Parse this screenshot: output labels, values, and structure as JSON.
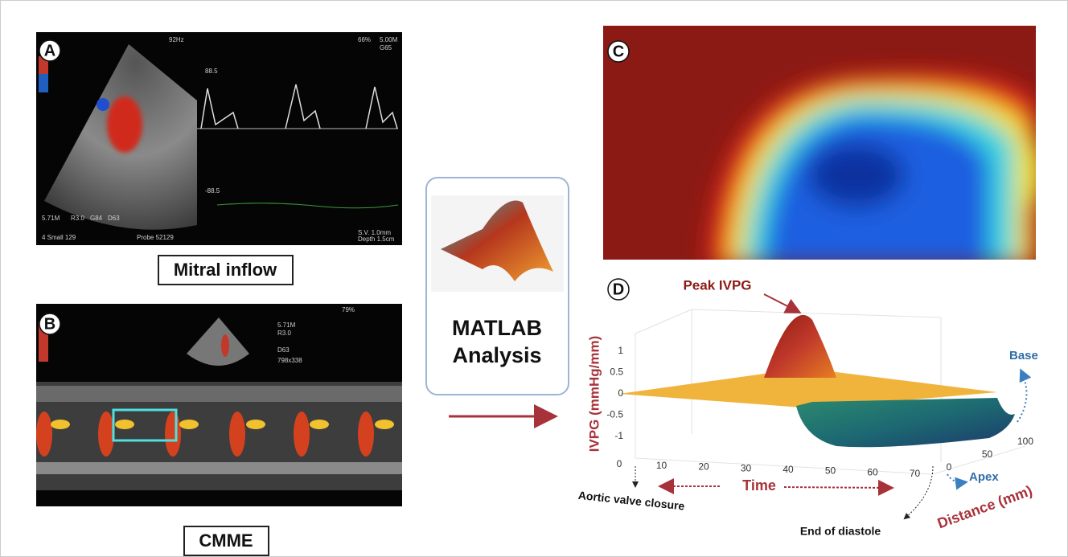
{
  "panels": {
    "a": "A",
    "b": "B",
    "c": "C",
    "d": "D"
  },
  "panel_a": {
    "label": "Mitral inflow",
    "overlay": [
      "92Hz",
      "66%",
      "5.00M",
      "G65",
      "88.5",
      "-88.5",
      "5.71M",
      "R3.0",
      "G84",
      "D63",
      "4 Small 129",
      "Probe 52129",
      "S.V. 1.0mm",
      "Depth 1.5cm"
    ]
  },
  "panel_b": {
    "label": "CMME",
    "overlay": [
      "79%",
      "5.71M",
      "R3.0",
      "D63",
      "798x338"
    ]
  },
  "matlab_box": {
    "label_lines": [
      "MATLAB",
      "Analysis"
    ]
  },
  "panel_d": {
    "peak_label": "Peak IVPG",
    "z_axis_label": "IVPG (mmHg/mm)",
    "time_label": "Time",
    "distance_label": "Distance (mm)",
    "base_label": "Base",
    "apex_label": "Apex",
    "aortic_label": "Aortic valve closure",
    "diastole_label": "End of diastole",
    "z_ticks": [
      1,
      0.5,
      0,
      -0.5,
      -1
    ],
    "time_ticks": [
      0,
      10,
      20,
      30,
      40,
      50,
      60,
      70
    ],
    "distance_ticks": [
      0,
      50,
      100
    ]
  }
}
